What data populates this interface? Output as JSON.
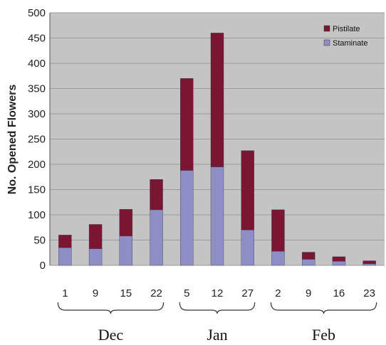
{
  "chart_data": {
    "type": "bar",
    "stacked": true,
    "ylabel": "No. Opened Flowers",
    "xlabel": "",
    "title": "",
    "ylim": [
      0,
      500
    ],
    "yticks": [
      0,
      50,
      100,
      150,
      200,
      250,
      300,
      350,
      400,
      450,
      500
    ],
    "grid": true,
    "legend_position": "top-right",
    "categories": [
      "1",
      "9",
      "15",
      "22",
      "5",
      "12",
      "27",
      "2",
      "9",
      "16",
      "23"
    ],
    "groups": [
      {
        "label": "Dec",
        "categories": [
          "1",
          "9",
          "15",
          "22"
        ]
      },
      {
        "label": "Jan",
        "categories": [
          "5",
          "12",
          "27"
        ]
      },
      {
        "label": "Feb",
        "categories": [
          "2",
          "9",
          "16",
          "23"
        ]
      }
    ],
    "series": [
      {
        "name": "Staminate",
        "color": "#8e8ec4",
        "values": [
          35,
          33,
          58,
          110,
          188,
          195,
          70,
          28,
          12,
          8,
          3
        ]
      },
      {
        "name": "Pistilate",
        "color": "#7a1632",
        "values": [
          25,
          48,
          53,
          60,
          182,
          265,
          157,
          82,
          14,
          9,
          6
        ]
      }
    ],
    "legend_order": [
      "Pistilate",
      "Staminate"
    ]
  },
  "colors": {
    "plot_bg": "#c4c4c4",
    "gridline": "#9a9a9a"
  }
}
